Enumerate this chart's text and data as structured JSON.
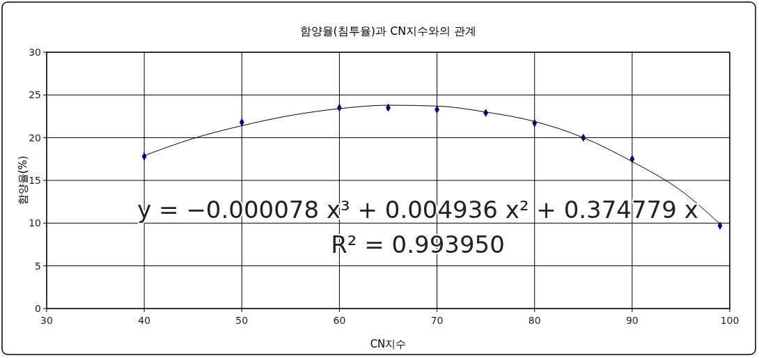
{
  "chart_data": {
    "type": "scatter",
    "title": "함양율(침투율)과 CN지수와의 관계",
    "xlabel": "CN지수",
    "ylabel": "함양율(%)",
    "xlim": [
      30,
      100
    ],
    "xticks": [
      30,
      40,
      50,
      60,
      70,
      80,
      90,
      100
    ],
    "ylim": [
      0,
      30
    ],
    "yticks": [
      0,
      5,
      10,
      15,
      20,
      25,
      30
    ],
    "grid": true,
    "marker": "diamond",
    "series": [
      {
        "color": "#000080",
        "x": [
          40,
          50,
          60,
          65,
          70,
          75,
          80,
          85,
          90,
          99
        ],
        "values": [
          17.8,
          21.8,
          23.5,
          23.5,
          23.3,
          22.9,
          21.7,
          20.0,
          17.5,
          9.7
        ]
      },
      {
        "type": "line",
        "color": "#000000",
        "marker": "none",
        "line_style": "solid",
        "x": [
          40,
          45,
          50,
          55,
          60,
          65,
          70,
          75,
          80,
          85,
          90,
          95,
          99
        ],
        "values": [
          17.9,
          19.9,
          21.4,
          22.6,
          23.4,
          23.8,
          23.7,
          23.0,
          21.9,
          20.0,
          17.2,
          13.8,
          9.9
        ]
      }
    ],
    "annotations": [
      "y = −0.000078 x³ + 0.004936 x² + 0.374779 x",
      "R²   = 0.993950"
    ]
  }
}
